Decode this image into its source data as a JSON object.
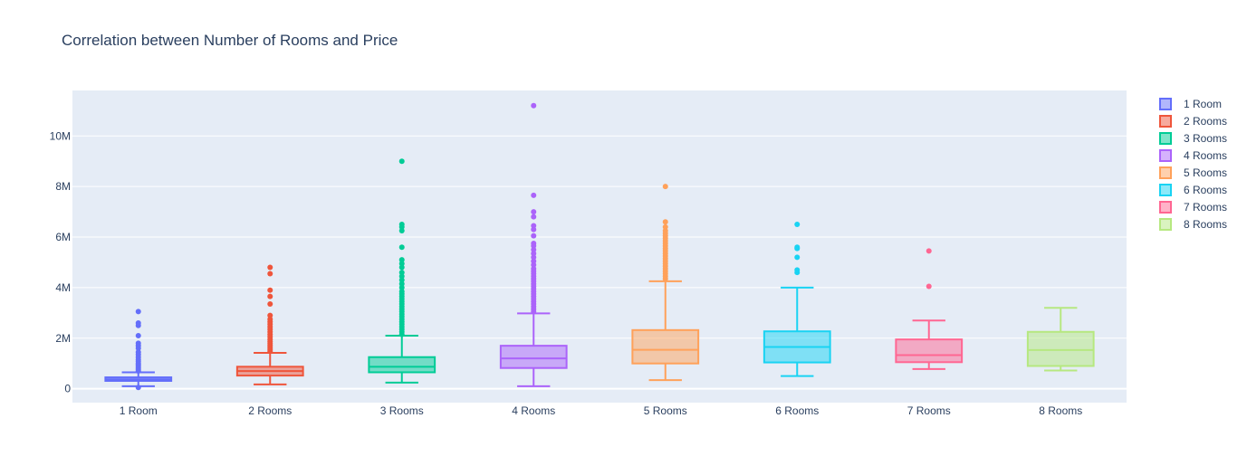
{
  "chart_data": {
    "type": "box",
    "title": "Correlation between Number of Rooms and Price",
    "xlabel": "",
    "ylabel": "",
    "ylim": [
      -550000,
      11800000
    ],
    "yticks": [
      0,
      2000000,
      4000000,
      6000000,
      8000000,
      10000000
    ],
    "ytick_labels": [
      "0",
      "2M",
      "4M",
      "6M",
      "8M",
      "10M"
    ],
    "grid": true,
    "legend_position": "right",
    "categories": [
      "1 Room",
      "2 Rooms",
      "3 Rooms",
      "4 Rooms",
      "5 Rooms",
      "6 Rooms",
      "7 Rooms",
      "8 Rooms"
    ],
    "series": [
      {
        "name": "1 Room",
        "color": "#636efa",
        "min": 100000,
        "q1": 310000,
        "median": 370000,
        "q3": 450000,
        "max": 650000,
        "outliers": [
          700000,
          760000,
          820000,
          880000,
          950000,
          1000000,
          1080000,
          1150000,
          1250000,
          1350000,
          1450000,
          1600000,
          1700000,
          1800000,
          2100000,
          2500000,
          2600000,
          3050000,
          50000
        ]
      },
      {
        "name": "2 Rooms",
        "color": "#ef553b",
        "min": 170000,
        "q1": 520000,
        "median": 700000,
        "q3": 870000,
        "max": 1420000,
        "outliers": [
          1480000,
          1550000,
          1620000,
          1700000,
          1780000,
          1860000,
          1950000,
          2050000,
          2150000,
          2250000,
          2350000,
          2450000,
          2550000,
          2650000,
          2750000,
          2900000,
          3350000,
          3650000,
          3900000,
          4550000,
          4800000
        ]
      },
      {
        "name": "3 Rooms",
        "color": "#00cc96",
        "min": 240000,
        "q1": 650000,
        "median": 870000,
        "q3": 1250000,
        "max": 2100000,
        "outliers": [
          2150000,
          2250000,
          2350000,
          2450000,
          2550000,
          2650000,
          2750000,
          2850000,
          2950000,
          3050000,
          3150000,
          3250000,
          3350000,
          3450000,
          3550000,
          3650000,
          3750000,
          3850000,
          4000000,
          4150000,
          4300000,
          4450000,
          4600000,
          4800000,
          4950000,
          5100000,
          5600000,
          6250000,
          6400000,
          6500000,
          9000000
        ]
      },
      {
        "name": "4 Rooms",
        "color": "#ab63fa",
        "min": 100000,
        "q1": 820000,
        "median": 1200000,
        "q3": 1700000,
        "max": 2980000,
        "outliers": [
          3050000,
          3150000,
          3250000,
          3350000,
          3450000,
          3550000,
          3650000,
          3750000,
          3850000,
          3950000,
          4050000,
          4150000,
          4250000,
          4350000,
          4450000,
          4550000,
          4650000,
          4750000,
          4900000,
          5050000,
          5200000,
          5350000,
          5500000,
          5650000,
          5750000,
          6050000,
          6300000,
          6450000,
          6800000,
          7000000,
          7650000,
          11200000
        ]
      },
      {
        "name": "5 Rooms",
        "color": "#ffa15a",
        "min": 340000,
        "q1": 1000000,
        "median": 1540000,
        "q3": 2320000,
        "max": 4250000,
        "outliers": [
          4350000,
          4450000,
          4550000,
          4650000,
          4750000,
          4850000,
          4950000,
          5050000,
          5150000,
          5250000,
          5350000,
          5450000,
          5550000,
          5650000,
          5750000,
          5850000,
          5950000,
          6050000,
          6150000,
          6250000,
          6400000,
          6600000,
          8000000
        ]
      },
      {
        "name": "6 Rooms",
        "color": "#19d3f3",
        "min": 500000,
        "q1": 1040000,
        "median": 1650000,
        "q3": 2270000,
        "max": 4000000,
        "outliers": [
          4600000,
          4700000,
          5200000,
          5550000,
          5600000,
          6500000
        ]
      },
      {
        "name": "7 Rooms",
        "color": "#ff6692",
        "min": 780000,
        "q1": 1050000,
        "median": 1330000,
        "q3": 1950000,
        "max": 2700000,
        "outliers": [
          4050000,
          5450000
        ]
      },
      {
        "name": "8 Rooms",
        "color": "#b6e880",
        "min": 720000,
        "q1": 900000,
        "median": 1530000,
        "q3": 2250000,
        "max": 3200000,
        "outliers": []
      }
    ]
  }
}
